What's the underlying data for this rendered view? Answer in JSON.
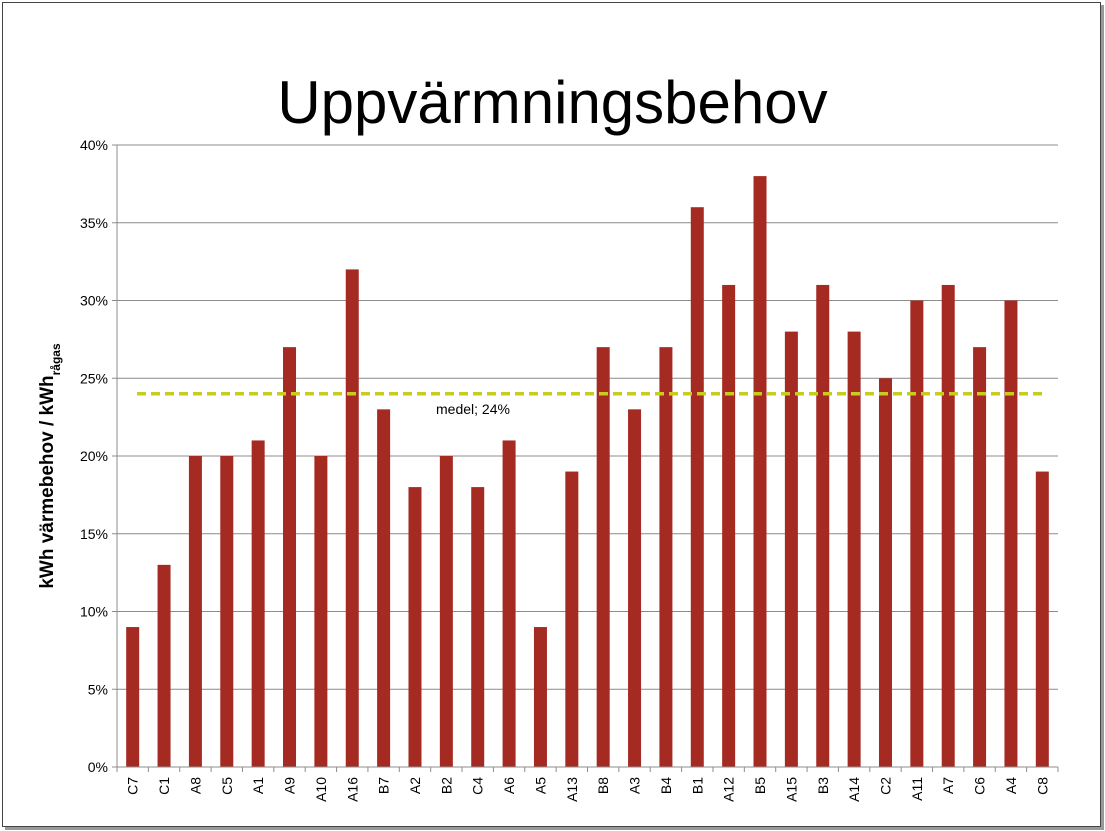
{
  "chart_data": {
    "type": "bar",
    "title": "Uppvärmningsbehov",
    "ylabel": "kWh värmebehov  /  kWh",
    "ylabel_sub": "rågas",
    "xlabel": "",
    "ylim": [
      0,
      40
    ],
    "yticks": [
      0,
      5,
      10,
      15,
      20,
      25,
      30,
      35,
      40
    ],
    "ytick_labels": [
      "0%",
      "5%",
      "10%",
      "15%",
      "20%",
      "25%",
      "30%",
      "35%",
      "40%"
    ],
    "grid": true,
    "categories": [
      "C7",
      "C1",
      "A8",
      "C5",
      "A1",
      "A9",
      "A10",
      "A16",
      "B7",
      "A2",
      "B2",
      "C4",
      "A6",
      "A5",
      "A13",
      "B8",
      "A3",
      "B4",
      "B1",
      "A12",
      "B5",
      "A15",
      "B3",
      "A14",
      "C2",
      "A11",
      "A7",
      "C6",
      "A4",
      "C8"
    ],
    "values": [
      9,
      13,
      20,
      20,
      21,
      27,
      20,
      32,
      23,
      18,
      20,
      18,
      21,
      9,
      19,
      27,
      23,
      27,
      36,
      31,
      38,
      28,
      31,
      28,
      25,
      30,
      31,
      27,
      30,
      19
    ],
    "bar_color": "#A52A22",
    "mean": {
      "value": 24,
      "label": "medel; 24%",
      "color": "#C8CC1E"
    }
  }
}
